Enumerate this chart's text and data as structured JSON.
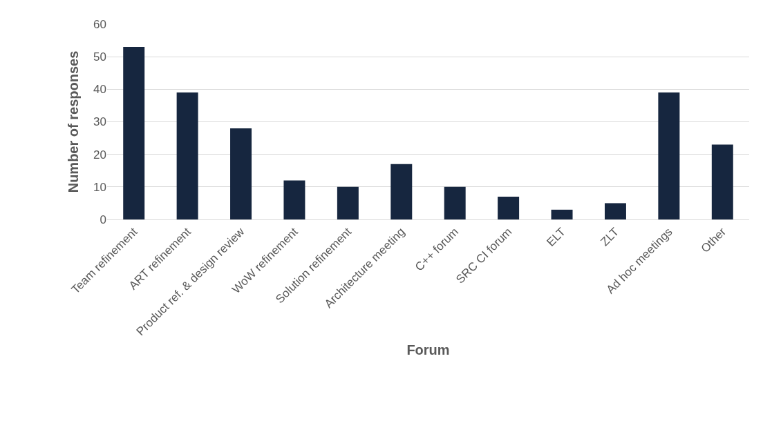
{
  "chart_data": {
    "type": "bar",
    "xlabel": "Forum",
    "ylabel": "Number of responses",
    "categories": [
      "Team refinement",
      "ART refinement",
      "Product ref. & design review",
      "WoW refinement",
      "Solution refinement",
      "Architecture meeting",
      "C++ forum",
      "SRC CI forum",
      "ELT",
      "ZLT",
      "Ad hoc meetings",
      "Other"
    ],
    "values": [
      53,
      39,
      28,
      12,
      10,
      17,
      10,
      7,
      3,
      5,
      39,
      23
    ],
    "color": "#16263f",
    "ylim": [
      0,
      60
    ],
    "yticks": [
      0,
      10,
      20,
      30,
      40,
      50,
      60
    ],
    "grid": "y",
    "legend": false
  }
}
